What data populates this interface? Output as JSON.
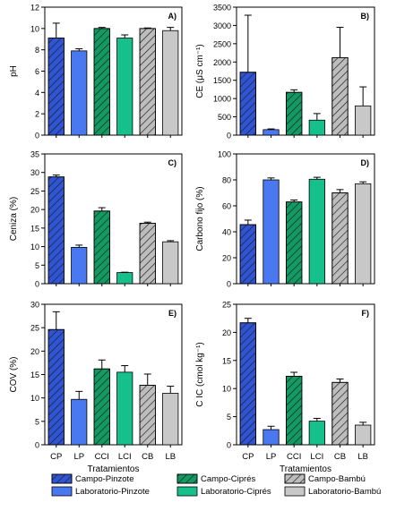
{
  "colors": {
    "pinzote": "#2f55d4",
    "cipres": "#139a63",
    "bambu": "#bdbdbd",
    "hatch_stroke": "#1a1a1a",
    "axis": "#000000"
  },
  "legend": {
    "items": [
      {
        "label": "Campo-Pinzote",
        "color": "#2f55d4",
        "hatched": true
      },
      {
        "label": "Campo-Ciprés",
        "color": "#139a63",
        "hatched": true
      },
      {
        "label": "Campo-Bambú",
        "color": "#bdbdbd",
        "hatched": true
      },
      {
        "label": "Laboratorio-Pinzote",
        "color": "#4a78f0",
        "hatched": false
      },
      {
        "label": "Laboratorio-Ciprés",
        "color": "#16c08a",
        "hatched": false
      },
      {
        "label": "Laboratorio-Bambú",
        "color": "#c8c8c8",
        "hatched": false
      }
    ]
  },
  "chart_data": [
    {
      "type": "bar",
      "panel": "A)",
      "ylabel": "pH",
      "xlabel": "",
      "categories": [
        "CP",
        "LP",
        "CCI",
        "LCI",
        "CB",
        "LB"
      ],
      "values": [
        9.1,
        7.9,
        10.0,
        9.1,
        10.0,
        9.8
      ],
      "errors": [
        1.4,
        0.2,
        0.1,
        0.3,
        0.05,
        0.3
      ],
      "ylim": [
        0,
        12
      ],
      "yticks": [
        0,
        2,
        4,
        6,
        8,
        10,
        12
      ]
    },
    {
      "type": "bar",
      "panel": "B)",
      "ylabel": "CE (μS cm⁻¹)",
      "xlabel": "",
      "categories": [
        "CP",
        "LP",
        "CCI",
        "LCI",
        "CB",
        "LB"
      ],
      "values": [
        1720,
        150,
        1170,
        410,
        2120,
        800
      ],
      "errors": [
        1560,
        20,
        70,
        180,
        830,
        520
      ],
      "ylim": [
        0,
        3500
      ],
      "yticks": [
        0,
        500,
        1000,
        1500,
        2000,
        2500,
        3000,
        3500
      ]
    },
    {
      "type": "bar",
      "panel": "C)",
      "ylabel": "Ceniza (%)",
      "xlabel": "",
      "categories": [
        "CP",
        "LP",
        "CCI",
        "LCI",
        "CB",
        "LB"
      ],
      "values": [
        28.8,
        9.8,
        19.6,
        3.0,
        16.3,
        11.3
      ],
      "errors": [
        0.5,
        0.6,
        0.9,
        0.1,
        0.3,
        0.3
      ],
      "ylim": [
        0,
        35
      ],
      "yticks": [
        0,
        5,
        10,
        15,
        20,
        25,
        30,
        35
      ]
    },
    {
      "type": "bar",
      "panel": "D)",
      "ylabel": "Carbono fijo (%)",
      "xlabel": "",
      "categories": [
        "CP",
        "LP",
        "CCI",
        "LCI",
        "CB",
        "LB"
      ],
      "values": [
        45.5,
        80.0,
        63.0,
        80.5,
        70.0,
        77.0
      ],
      "errors": [
        3.5,
        1.5,
        1.5,
        1.5,
        2.5,
        1.5
      ],
      "ylim": [
        0,
        100
      ],
      "yticks": [
        0,
        20,
        40,
        60,
        80,
        100
      ]
    },
    {
      "type": "bar",
      "panel": "E)",
      "ylabel": "COV (%)",
      "xlabel": "Tratamientos",
      "categories": [
        "CP",
        "LP",
        "CCI",
        "LCI",
        "CB",
        "LB"
      ],
      "values": [
        24.6,
        9.7,
        16.2,
        15.5,
        12.7,
        11.0
      ],
      "errors": [
        3.8,
        1.7,
        1.9,
        1.4,
        2.4,
        1.5
      ],
      "ylim": [
        0,
        30
      ],
      "yticks": [
        0,
        5,
        10,
        15,
        20,
        25,
        30
      ]
    },
    {
      "type": "bar",
      "panel": "F)",
      "ylabel": "C IC (cmol kg⁻¹)",
      "xlabel": "Tratamientos",
      "categories": [
        "CP",
        "LP",
        "CCI",
        "LCI",
        "CB",
        "LB"
      ],
      "values": [
        21.7,
        2.7,
        12.2,
        4.2,
        11.1,
        3.5
      ],
      "errors": [
        0.8,
        0.6,
        0.7,
        0.5,
        0.6,
        0.5
      ],
      "ylim": [
        0,
        25
      ],
      "yticks": [
        0,
        5,
        10,
        15,
        20,
        25
      ]
    }
  ]
}
